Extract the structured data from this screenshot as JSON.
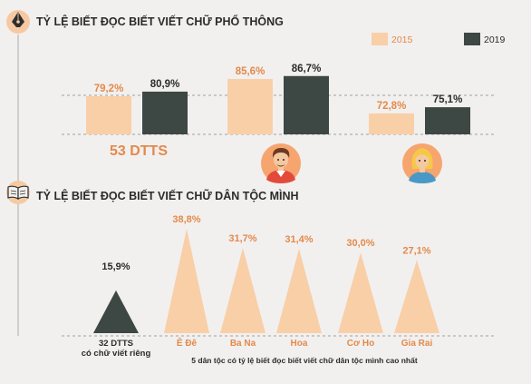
{
  "colors": {
    "background": "#f1f0ef",
    "peach": "#f9cfa8",
    "orange_text": "#e5894a",
    "dark": "#3d4743",
    "text": "#2b2b2b"
  },
  "icons": {
    "section1": "pen-nib-icon",
    "section2": "open-book-icon",
    "person1": "man-avatar-icon",
    "person2": "woman-avatar-icon"
  },
  "chart_data": [
    {
      "type": "bar",
      "title": "TỶ LỆ BIẾT ĐỌC BIẾT VIẾT CHỮ PHỔ THÔNG",
      "categories": [
        "53 DTTS",
        "",
        ""
      ],
      "series": [
        {
          "name": "2015",
          "values": [
            79.2,
            85.6,
            72.8
          ],
          "labels": [
            "79,2%",
            "85,6%",
            "72,8%"
          ],
          "color": "#f9cfa8"
        },
        {
          "name": "2019",
          "values": [
            80.9,
            86.7,
            75.1
          ],
          "labels": [
            "80,9%",
            "86,7%",
            "75,1%"
          ],
          "color": "#3d4743"
        }
      ],
      "grid": "dashed",
      "legend": "top-right"
    },
    {
      "type": "bar",
      "title": "TỶ LỆ BIẾT ĐỌC BIẾT VIẾT CHỮ DÂN TỘC MÌNH",
      "shape": "triangle",
      "categories": [
        "32 DTTS\ncó chữ viết riêng",
        "Ê Đê",
        "Ba Na",
        "Hoa",
        "Cơ Ho",
        "Gia Rai"
      ],
      "values": [
        15.9,
        38.8,
        31.7,
        31.4,
        30.0,
        27.1
      ],
      "labels": [
        "15,9%",
        "38,8%",
        "31,7%",
        "31,4%",
        "30,0%",
        "27,1%"
      ],
      "colors": [
        "#3d4743",
        "#f9cfa8",
        "#f9cfa8",
        "#f9cfa8",
        "#f9cfa8",
        "#f9cfa8"
      ],
      "caption": "5 dân tộc có tỷ lệ biết đọc biết viết chữ dân tộc mình cao nhất"
    }
  ]
}
